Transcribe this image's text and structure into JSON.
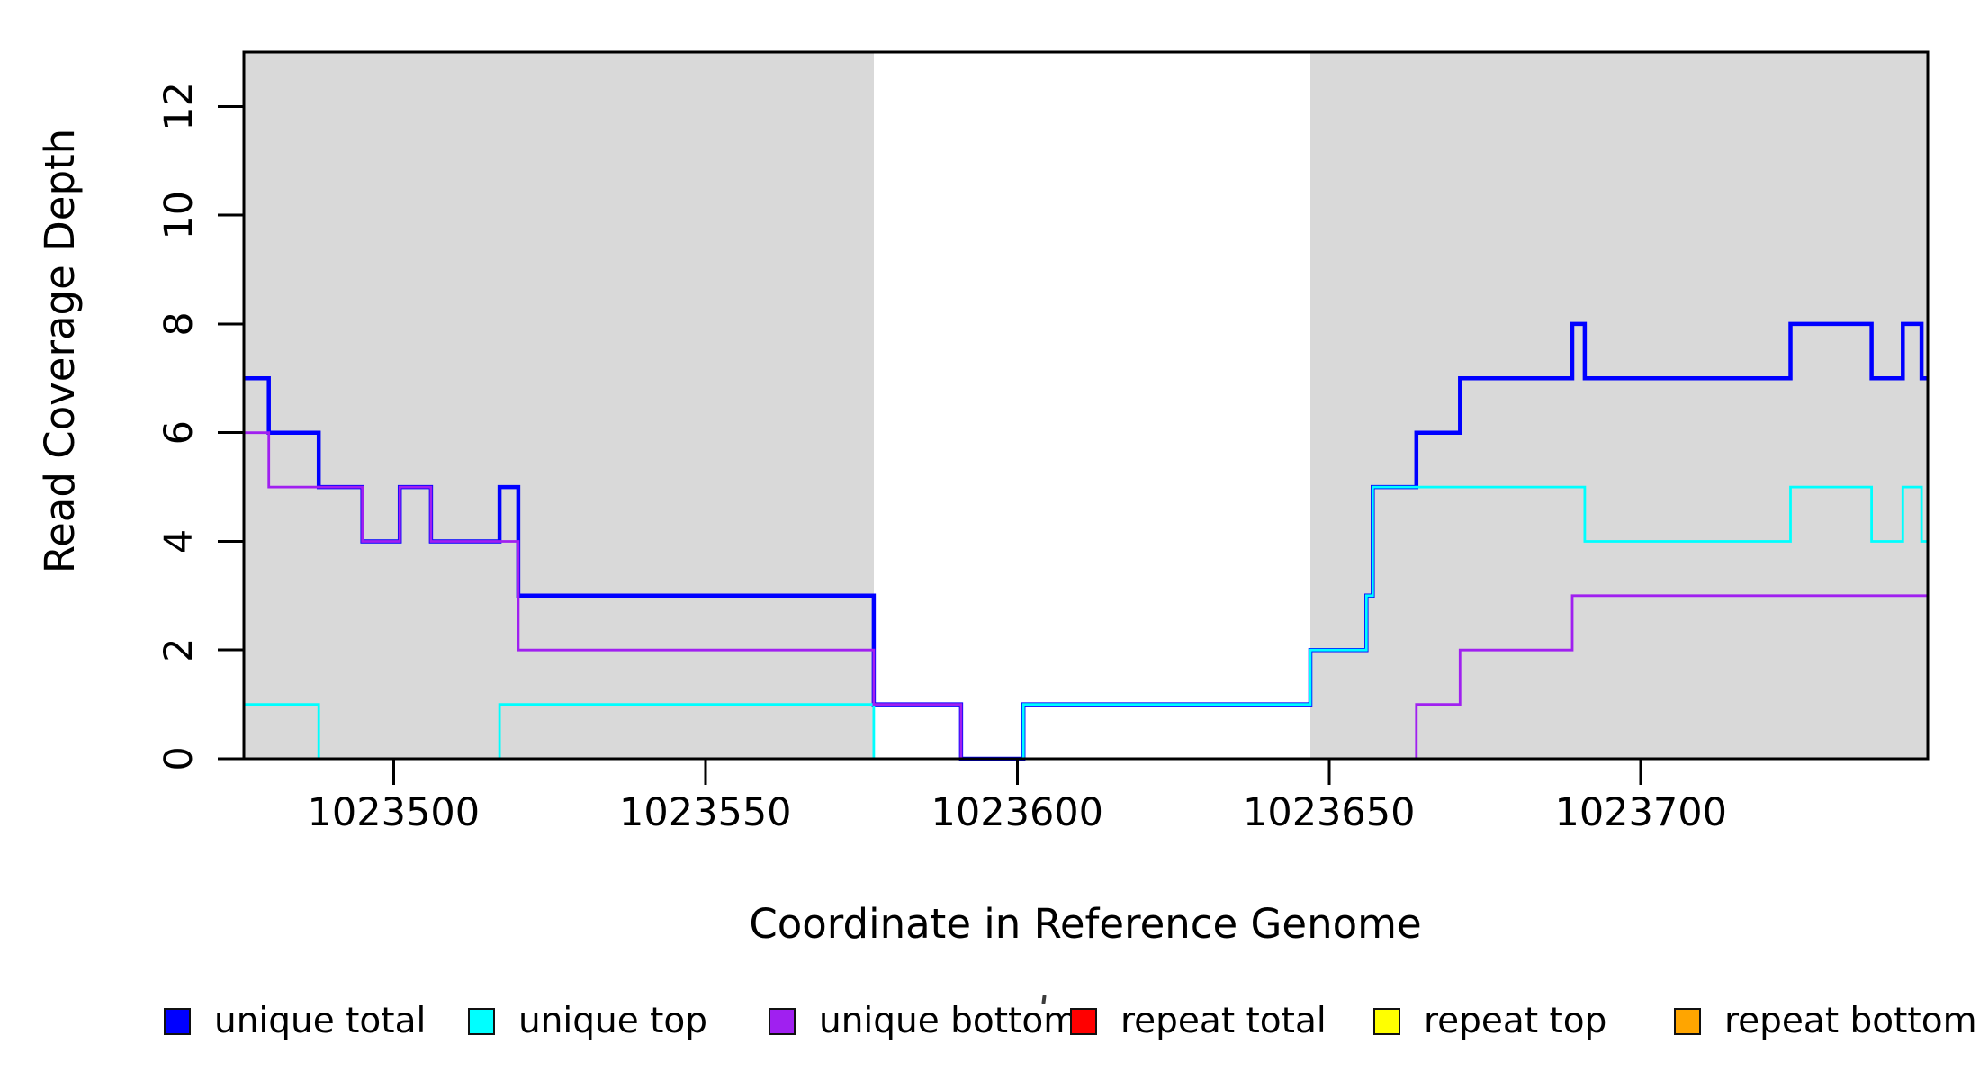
{
  "chart_data": {
    "type": "line",
    "subtype": "step-function-read-coverage",
    "title": "",
    "xlabel": "Coordinate in Reference Genome",
    "ylabel": "Read Coverage Depth",
    "xlim": [
      1023476,
      1023746
    ],
    "ylim": [
      0,
      13
    ],
    "x_ticks": [
      1023500,
      1023550,
      1023600,
      1023650,
      1023700
    ],
    "y_ticks": [
      0,
      2,
      4,
      6,
      8,
      10,
      12
    ],
    "grid": false,
    "legend_position": "bottom-horizontal",
    "plot_bg": "#FFFFFF",
    "shaded_region_color": "#D9D9D9",
    "shaded_regions": [
      {
        "x0": 1023476,
        "x1": 1023577
      },
      {
        "x0": 1023647,
        "x1": 1023746
      }
    ],
    "series": [
      {
        "name": "repeat total",
        "color": "#FF0000",
        "width": 3,
        "end": 1023746,
        "steps": [
          [
            1023476,
            0
          ]
        ]
      },
      {
        "name": "repeat top",
        "color": "#FFFF00",
        "width": 2.5,
        "end": 1023746,
        "steps": [
          [
            1023476,
            0
          ]
        ]
      },
      {
        "name": "repeat bottom",
        "color": "#FFA500",
        "width": 3,
        "end": 1023746,
        "steps": [
          [
            1023476,
            0
          ]
        ]
      },
      {
        "name": "unique total",
        "color": "#0000FF",
        "width": 4.5,
        "end": 1023746,
        "steps": [
          [
            1023476,
            7
          ],
          [
            1023480,
            6
          ],
          [
            1023488,
            5
          ],
          [
            1023495,
            4
          ],
          [
            1023501,
            5
          ],
          [
            1023506,
            4
          ],
          [
            1023517,
            5
          ],
          [
            1023520,
            3
          ],
          [
            1023577,
            1
          ],
          [
            1023591,
            0
          ],
          [
            1023601,
            1
          ],
          [
            1023647,
            2
          ],
          [
            1023656,
            3
          ],
          [
            1023657,
            5
          ],
          [
            1023664,
            6
          ],
          [
            1023671,
            7
          ],
          [
            1023689,
            8
          ],
          [
            1023691,
            7
          ],
          [
            1023724,
            8
          ],
          [
            1023737,
            7
          ],
          [
            1023742,
            8
          ],
          [
            1023745,
            7
          ]
        ]
      },
      {
        "name": "unique top",
        "color": "#00FFFF",
        "width": 2.8,
        "end": 1023746,
        "steps": [
          [
            1023476,
            1
          ],
          [
            1023488,
            0
          ],
          [
            1023517,
            1
          ],
          [
            1023577,
            0
          ],
          [
            1023601,
            1
          ],
          [
            1023647,
            2
          ],
          [
            1023656,
            3
          ],
          [
            1023657,
            5
          ],
          [
            1023691,
            4
          ],
          [
            1023724,
            5
          ],
          [
            1023737,
            4
          ],
          [
            1023742,
            5
          ],
          [
            1023745,
            4
          ]
        ]
      },
      {
        "name": "unique bottom",
        "color": "#A020F0",
        "width": 2.8,
        "end": 1023746,
        "steps": [
          [
            1023476,
            6
          ],
          [
            1023480,
            5
          ],
          [
            1023495,
            4
          ],
          [
            1023501,
            5
          ],
          [
            1023506,
            4
          ],
          [
            1023520,
            2
          ],
          [
            1023577,
            1
          ],
          [
            1023591,
            0
          ],
          [
            1023664,
            1
          ],
          [
            1023671,
            2
          ],
          [
            1023689,
            3
          ]
        ]
      }
    ]
  },
  "legend": {
    "items": [
      {
        "label": "unique total",
        "color": "#0000FF"
      },
      {
        "label": "unique top",
        "color": "#00FFFF"
      },
      {
        "label": "unique bottom",
        "color": "#A020F0"
      },
      {
        "label": "repeat total",
        "color": "#FF0000"
      },
      {
        "label": "repeat top",
        "color": "#FFFF00"
      },
      {
        "label": "repeat bottom",
        "color": "#FFA500"
      }
    ]
  }
}
